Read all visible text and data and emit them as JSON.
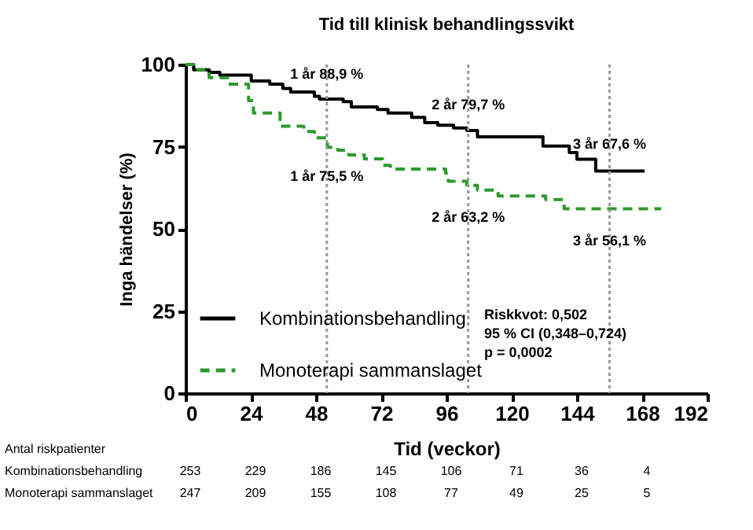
{
  "chart_data": {
    "type": "step",
    "title": "Tid till klinisk behandlingssvikt",
    "xlabel": "Tid (veckor)",
    "ylabel": "Inga händelser (%)",
    "xlim": [
      0,
      192
    ],
    "xticks": [
      0,
      24,
      48,
      72,
      96,
      120,
      144,
      168,
      192
    ],
    "ylim": [
      0,
      100
    ],
    "yticks": [
      0,
      25,
      50,
      75,
      100
    ],
    "grid": false,
    "legend": "bottom left",
    "marker": "none",
    "series": [
      {
        "name": "Kombinationsbehandling",
        "color": "#000000",
        "line_style": "solid",
        "x": [
          0,
          3,
          8.7,
          12.6,
          24.2,
          31,
          35.8,
          38.7,
          47.4,
          49.3,
          58,
          61,
          70.6,
          74.5,
          83.2,
          88,
          92.8,
          98.6,
          103.5,
          107.4,
          131.5,
          141.2,
          144,
          150.9,
          168.9
        ],
        "values": [
          100,
          98.4,
          97.6,
          96.8,
          95,
          94,
          92.7,
          91.6,
          90.3,
          89.5,
          88.7,
          87.1,
          86.3,
          85.2,
          83.9,
          82.3,
          81.5,
          80.7,
          79.9,
          78,
          75.2,
          73.2,
          71.2,
          67.6,
          67.6
        ]
      },
      {
        "name": "Monoterapi sammanslaget",
        "color": "#2e9a2e",
        "line_style": "dashed",
        "x": [
          0,
          3,
          8.7,
          15.5,
          23.2,
          25,
          34.8,
          43.5,
          47.4,
          52.2,
          56,
          60,
          65.8,
          72.5,
          75.4,
          95.7,
          96.7,
          103.5,
          107.4,
          115,
          132.5,
          139.3,
          175
        ],
        "values": [
          100,
          98.4,
          96,
          94,
          89,
          85.2,
          81.2,
          79.6,
          77.7,
          74.8,
          73.9,
          72.5,
          71.3,
          69.3,
          68.2,
          66.9,
          64.5,
          63.2,
          61.8,
          60,
          58.9,
          56.1,
          56.1
        ]
      }
    ],
    "ref_lines": [
      {
        "axis": "x",
        "value": 52,
        "color": "#999999",
        "line_style": "dotted"
      },
      {
        "axis": "x",
        "value": 104,
        "color": "#999999",
        "line_style": "dotted"
      },
      {
        "axis": "x",
        "value": 156,
        "color": "#999999",
        "line_style": "dotted"
      }
    ],
    "annotations": [
      {
        "text": "1 år 88,9 %",
        "x": 52,
        "y": 88.9
      },
      {
        "text": "2 år 79,7 %",
        "x": 104,
        "y": 79.7
      },
      {
        "text": "3 år 67,6 %",
        "x": 156,
        "y": 67.6
      },
      {
        "text": "1 år 75,5 %",
        "x": 52,
        "y": 75.5
      },
      {
        "text": "2 år 63,2 %",
        "x": 104,
        "y": 63.2
      },
      {
        "text": "3 år 56,1 %",
        "x": 156,
        "y": 56.1
      },
      "Riskkvot: 0,502",
      "95 % CI (0,348–0,724)",
      "p = 0,0002",
      "Antal riskpatienter",
      "Kombinationsbehandling",
      "253",
      "229",
      "186",
      "145",
      "106",
      "71",
      "36",
      "4",
      "Monoterapi sammanslaget",
      "247",
      "209",
      "155",
      "108",
      "77",
      "49",
      "25",
      "5"
    ]
  }
}
